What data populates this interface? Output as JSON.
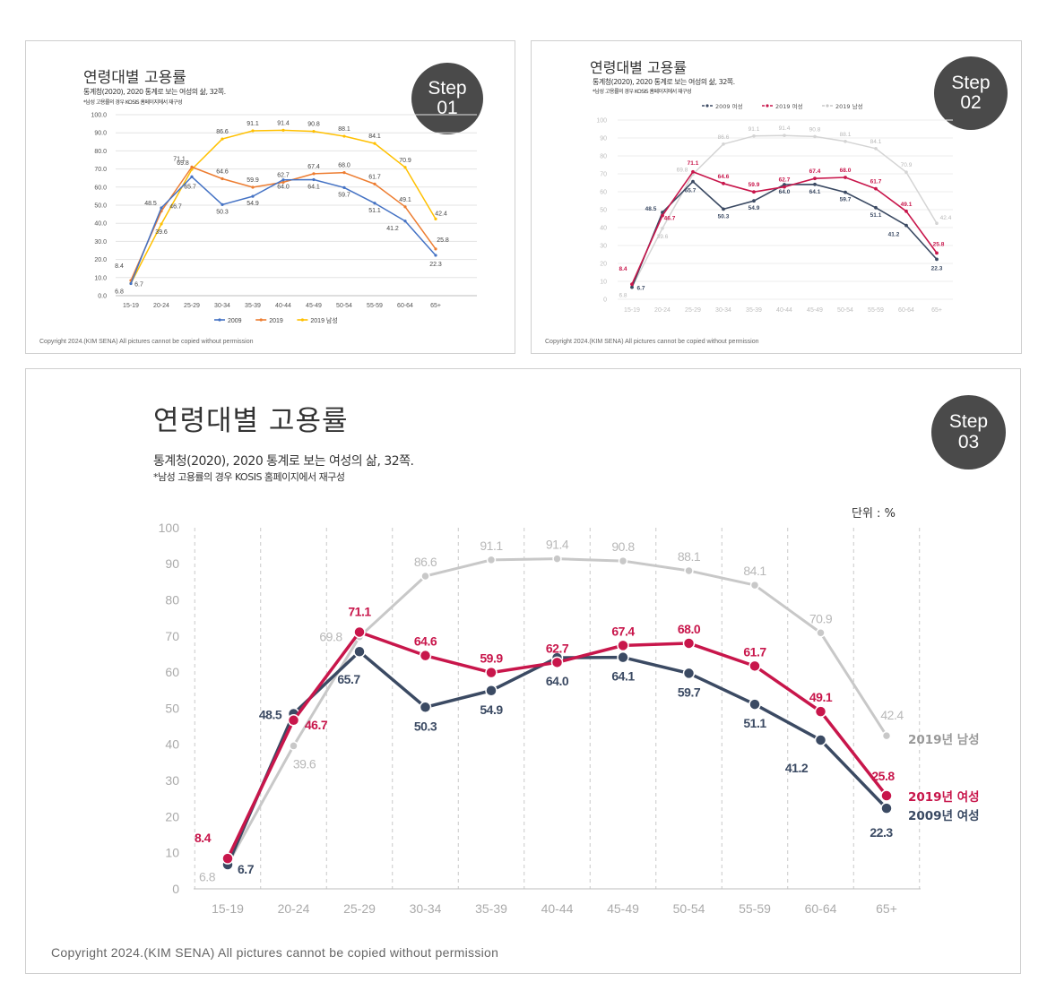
{
  "title": "연령대별 고용률",
  "subtitle": "통계청(2020), 2020 통계로 보는 여성의 삶, 32쪽.",
  "subtitle_small": "통계청(2020), 2020 통계로 보는 여성의 삶, 32쪽.",
  "note": "*남성 고용률의 경우 KOSIS 홈페이지에서 재구성",
  "copyright": "Copyright 2024.(KIM SENA) All pictures cannot be copied without permission",
  "unit_label": "단위 : %",
  "steps": [
    {
      "word": "Step",
      "num": "01"
    },
    {
      "word": "Step",
      "num": "02"
    },
    {
      "word": "Step",
      "num": "03"
    }
  ],
  "colors": {
    "step1_2009": "#4472c4",
    "step1_2019": "#ed7d31",
    "step1_male": "#ffc000",
    "navy": "#3b4a63",
    "crimson": "#c8164b",
    "gray": "#c8c8c8"
  },
  "legend_step1": [
    "2009",
    "2019",
    "2019 남성"
  ],
  "legend_step2": [
    "2009 여성",
    "2019 여성",
    "2019 남성"
  ],
  "end_labels_step3": {
    "male": "2019년 남성",
    "f2019": "2019년 여성",
    "f2009": "2009년 여성"
  },
  "chart_data": {
    "type": "line",
    "title": "연령대별 고용률",
    "categories": [
      "15-19",
      "20-24",
      "25-29",
      "30-34",
      "35-39",
      "40-44",
      "45-49",
      "50-54",
      "55-59",
      "60-64",
      "65+"
    ],
    "series": [
      {
        "name": "2009 여성",
        "values": [
          6.7,
          48.5,
          65.7,
          50.3,
          54.9,
          64.0,
          64.1,
          59.7,
          51.1,
          41.2,
          22.3
        ]
      },
      {
        "name": "2019 여성",
        "values": [
          8.4,
          46.7,
          71.1,
          64.6,
          59.9,
          62.7,
          67.4,
          68.0,
          61.7,
          49.1,
          25.8
        ]
      },
      {
        "name": "2019 남성",
        "values": [
          6.8,
          39.6,
          69.8,
          86.6,
          91.1,
          91.4,
          90.8,
          88.1,
          84.1,
          70.9,
          42.4
        ]
      }
    ],
    "ylim": [
      0,
      100
    ],
    "yticks_step1": [
      "0.0",
      "10.0",
      "20.0",
      "30.0",
      "40.0",
      "50.0",
      "60.0",
      "70.0",
      "80.0",
      "90.0",
      "100.0"
    ],
    "yticks": [
      "0",
      "10",
      "20",
      "30",
      "40",
      "50",
      "60",
      "70",
      "80",
      "90",
      "100"
    ],
    "grid": true
  }
}
